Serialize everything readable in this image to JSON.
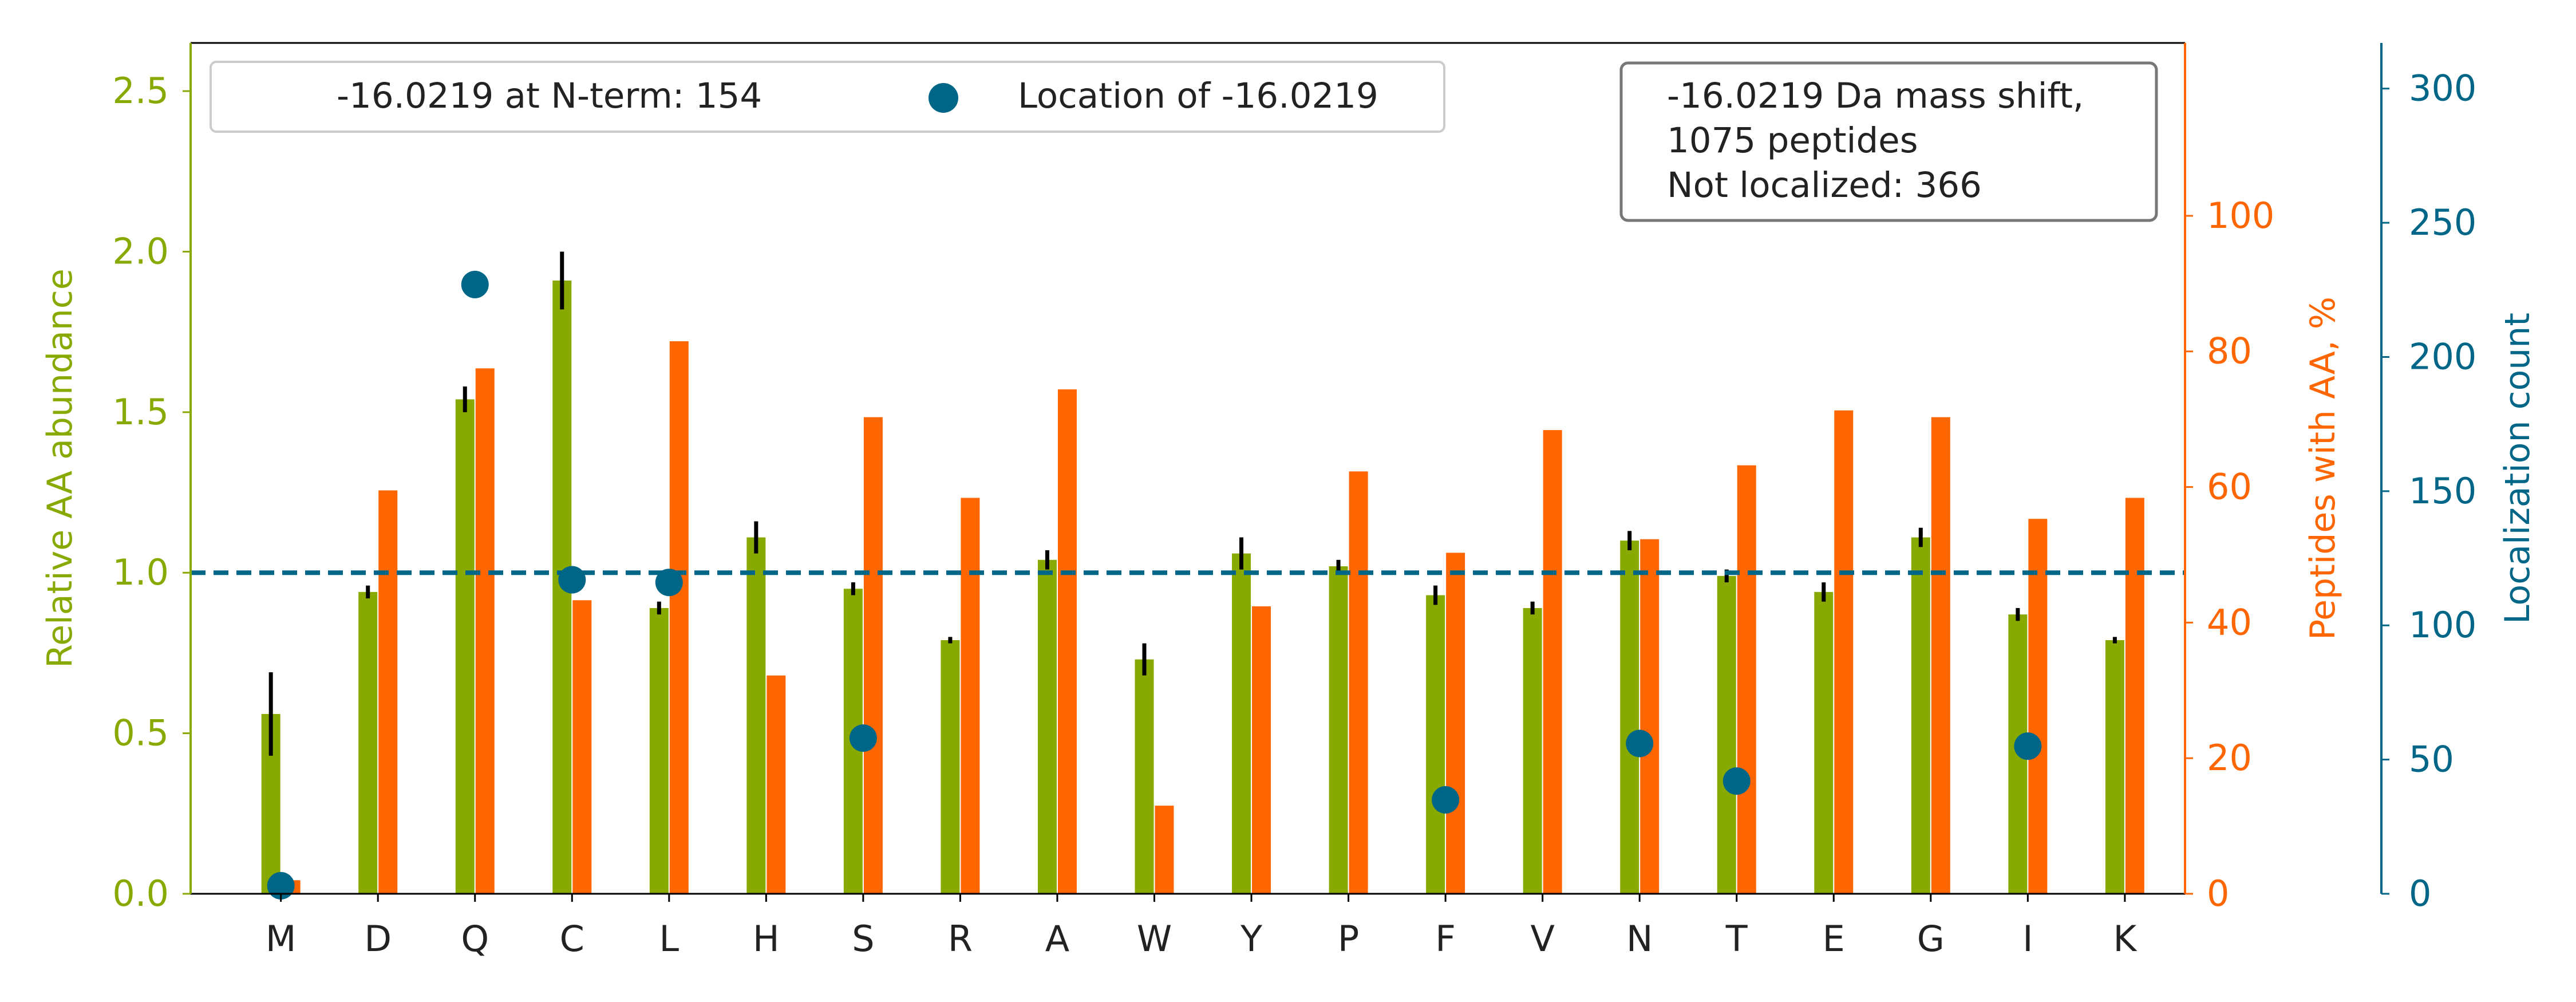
{
  "chart_data": {
    "type": "bar",
    "categories": [
      "M",
      "D",
      "Q",
      "C",
      "L",
      "H",
      "S",
      "R",
      "A",
      "W",
      "Y",
      "P",
      "F",
      "V",
      "N",
      "T",
      "E",
      "G",
      "I",
      "K"
    ],
    "axes": {
      "left": {
        "label": "Relative AA abundance",
        "ylim": [
          0,
          2.65
        ],
        "ticks": [
          "0.0",
          "0.5",
          "1.0",
          "1.5",
          "2.0",
          "2.5"
        ],
        "tick_values": [
          0,
          0.5,
          1.0,
          1.5,
          2.0,
          2.5
        ],
        "color": "#88aa00"
      },
      "right": {
        "label": "Peptides with AA, %",
        "ylim": [
          0,
          125.5
        ],
        "ticks": [
          "0",
          "20",
          "40",
          "60",
          "80",
          "100"
        ],
        "tick_values": [
          0,
          20,
          40,
          60,
          80,
          100
        ],
        "color": "#ff6600"
      },
      "far_right": {
        "label": "Localization count",
        "ylim": [
          0,
          317
        ],
        "ticks": [
          "0",
          "50",
          "100",
          "150",
          "200",
          "250",
          "300"
        ],
        "tick_values": [
          0,
          50,
          100,
          150,
          200,
          250,
          300
        ],
        "color": "#006688"
      }
    },
    "series": [
      {
        "axis": "left",
        "kind": "bar",
        "color": "#88aa00",
        "values": [
          0.56,
          0.94,
          1.54,
          1.91,
          0.89,
          1.11,
          0.95,
          0.79,
          1.04,
          0.73,
          1.06,
          1.02,
          0.93,
          0.89,
          1.1,
          0.99,
          0.94,
          1.11,
          0.87,
          0.79
        ],
        "errors": [
          0.13,
          0.02,
          0.04,
          0.09,
          0.02,
          0.05,
          0.02,
          0.01,
          0.03,
          0.05,
          0.05,
          0.02,
          0.03,
          0.02,
          0.03,
          0.02,
          0.03,
          0.03,
          0.02,
          0.01
        ]
      },
      {
        "axis": "right",
        "kind": "bar",
        "color": "#ff6600",
        "values": [
          2,
          59.5,
          77.5,
          43.3,
          81.5,
          32.2,
          70.3,
          58.4,
          74.4,
          13.0,
          42.4,
          62.3,
          50.3,
          68.4,
          52.3,
          63.2,
          71.3,
          70.3,
          55.3,
          58.4
        ]
      },
      {
        "name": "Location of -16.0219",
        "axis": "far_right",
        "kind": "scatter",
        "color": "#006688",
        "points": [
          {
            "category": "M",
            "value": 3
          },
          {
            "category": "Q",
            "value": 227
          },
          {
            "category": "C",
            "value": 117
          },
          {
            "category": "L",
            "value": 116
          },
          {
            "category": "S",
            "value": 58
          },
          {
            "category": "F",
            "value": 35
          },
          {
            "category": "N",
            "value": 56
          },
          {
            "category": "T",
            "value": 42
          },
          {
            "category": "I",
            "value": 55
          }
        ]
      }
    ],
    "reference_line": {
      "axis": "left",
      "value": 1.0,
      "style": "dashed",
      "color": "#006688"
    },
    "legend": {
      "placement": "top-left",
      "entries": [
        {
          "label": "-16.0219 at N-term: 154",
          "marker": "none"
        },
        {
          "label": "Location of -16.0219",
          "marker": "circle",
          "color": "#006688"
        }
      ]
    },
    "annotation": {
      "placement": "top-right",
      "lines": [
        "-16.0219 Da mass shift,",
        "1075 peptides",
        "Not localized: 366"
      ]
    },
    "grid": false
  }
}
